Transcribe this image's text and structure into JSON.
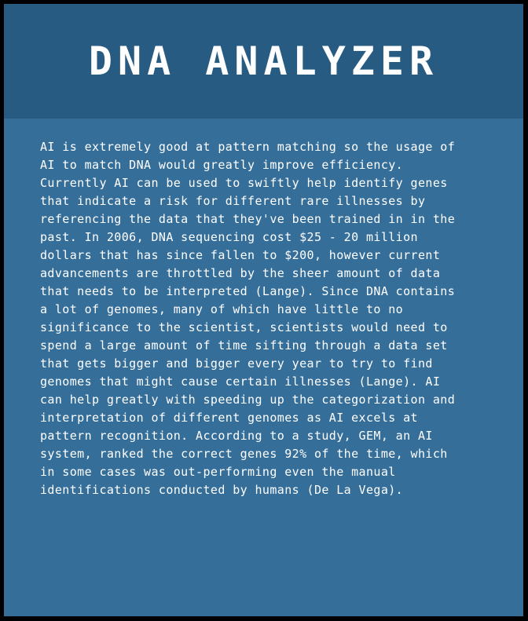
{
  "app": {
    "title": "DNA ANALYZER"
  },
  "content": {
    "paragraph": "AI is extremely good at pattern matching so the usage of\nAI to match DNA would greatly improve efficiency.\nCurrently AI can be used to swiftly help identify genes\nthat indicate a risk for different rare illnesses by\nreferencing the data that they've been trained in in the\npast. In 2006, DNA sequencing cost $25 - 20 million\ndollars that has since fallen to $200, however current\nadvancements are throttled by the sheer amount of data\nthat needs to be interpreted (Lange). Since DNA contains\na lot of genomes, many of which have little to no\nsignificance to the scientist, scientists would need to\nspend a large amount of time sifting through a data set\nthat gets bigger and bigger every year to try to find\ngenomes that might cause certain illnesses (Lange). AI\ncan help greatly with speeding up the categorization and\ninterpretation of different genomes as AI excels at\npattern recognition. According to a study, GEM, an AI\nsystem, ranked the correct genes 92% of the time, which\nin some cases was out-performing even the manual\nidentifications conducted by humans (De La Vega)."
  },
  "colors": {
    "outer_border": "#000000",
    "panel_background": "#356e99",
    "header_background": "#285b82",
    "text": "#ffffff"
  }
}
